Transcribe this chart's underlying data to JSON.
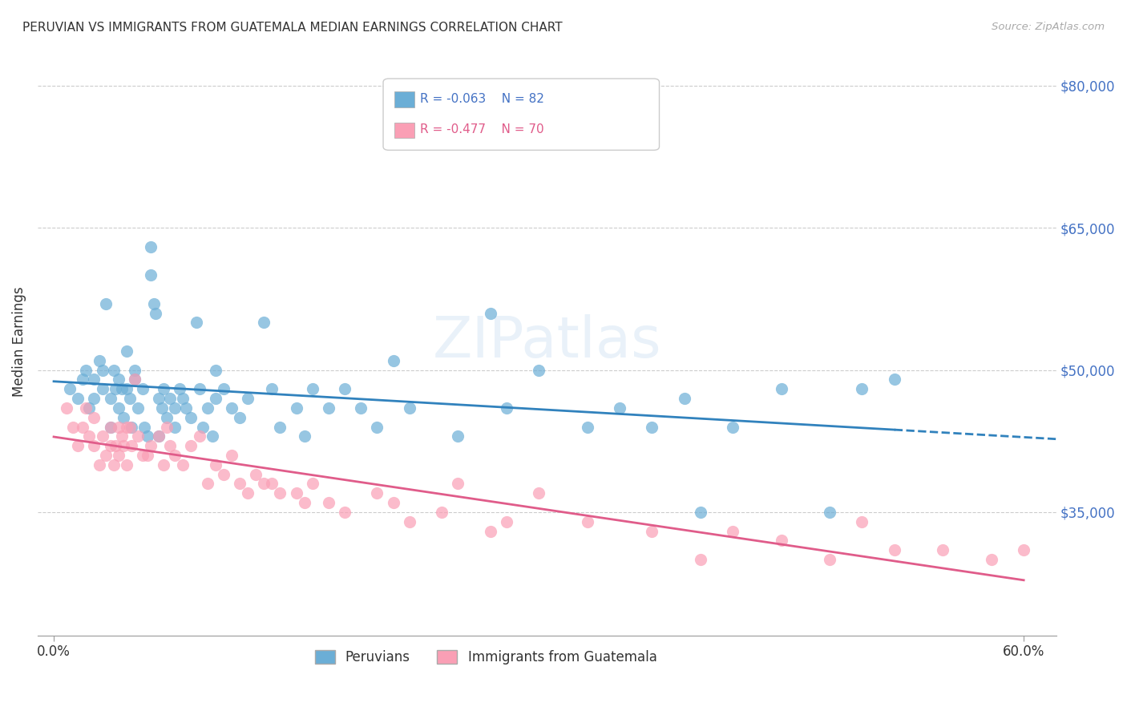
{
  "title": "PERUVIAN VS IMMIGRANTS FROM GUATEMALA MEDIAN EARNINGS CORRELATION CHART",
  "source": "Source: ZipAtlas.com",
  "ylabel": "Median Earnings",
  "yticks": [
    35000,
    50000,
    65000,
    80000
  ],
  "ytick_labels": [
    "$35,000",
    "$50,000",
    "$65,000",
    "$80,000"
  ],
  "xlim": [
    -0.01,
    0.62
  ],
  "ylim": [
    22000,
    84000
  ],
  "legend_label1": "Peruvians",
  "legend_label2": "Immigrants from Guatemala",
  "R1": -0.063,
  "N1": 82,
  "R2": -0.477,
  "N2": 70,
  "color_blue": "#6baed6",
  "color_pink": "#fa9fb5",
  "color_trendline_blue": "#3182bd",
  "color_trendline_pink": "#e05c8a",
  "background_color": "#ffffff",
  "title_fontsize": 11,
  "blue_points_x": [
    0.01,
    0.015,
    0.018,
    0.02,
    0.022,
    0.025,
    0.025,
    0.028,
    0.03,
    0.03,
    0.032,
    0.035,
    0.035,
    0.037,
    0.038,
    0.04,
    0.04,
    0.042,
    0.043,
    0.045,
    0.045,
    0.047,
    0.048,
    0.05,
    0.05,
    0.052,
    0.055,
    0.056,
    0.058,
    0.06,
    0.06,
    0.062,
    0.063,
    0.065,
    0.065,
    0.067,
    0.068,
    0.07,
    0.072,
    0.075,
    0.075,
    0.078,
    0.08,
    0.082,
    0.085,
    0.088,
    0.09,
    0.092,
    0.095,
    0.098,
    0.1,
    0.1,
    0.105,
    0.11,
    0.115,
    0.12,
    0.13,
    0.135,
    0.14,
    0.15,
    0.155,
    0.16,
    0.17,
    0.18,
    0.19,
    0.2,
    0.21,
    0.22,
    0.25,
    0.27,
    0.28,
    0.3,
    0.33,
    0.35,
    0.37,
    0.39,
    0.4,
    0.42,
    0.45,
    0.48,
    0.5,
    0.52
  ],
  "blue_points_y": [
    48000,
    47000,
    49000,
    50000,
    46000,
    47000,
    49000,
    51000,
    48000,
    50000,
    57000,
    44000,
    47000,
    50000,
    48000,
    46000,
    49000,
    48000,
    45000,
    52000,
    48000,
    47000,
    44000,
    49000,
    50000,
    46000,
    48000,
    44000,
    43000,
    60000,
    63000,
    57000,
    56000,
    43000,
    47000,
    46000,
    48000,
    45000,
    47000,
    44000,
    46000,
    48000,
    47000,
    46000,
    45000,
    55000,
    48000,
    44000,
    46000,
    43000,
    47000,
    50000,
    48000,
    46000,
    45000,
    47000,
    55000,
    48000,
    44000,
    46000,
    43000,
    48000,
    46000,
    48000,
    46000,
    44000,
    51000,
    46000,
    43000,
    56000,
    46000,
    50000,
    44000,
    46000,
    44000,
    47000,
    35000,
    44000,
    48000,
    35000,
    48000,
    49000
  ],
  "pink_points_x": [
    0.008,
    0.012,
    0.015,
    0.018,
    0.02,
    0.022,
    0.025,
    0.025,
    0.028,
    0.03,
    0.032,
    0.035,
    0.035,
    0.037,
    0.038,
    0.04,
    0.04,
    0.042,
    0.043,
    0.045,
    0.045,
    0.047,
    0.048,
    0.05,
    0.052,
    0.055,
    0.058,
    0.06,
    0.065,
    0.068,
    0.07,
    0.072,
    0.075,
    0.08,
    0.085,
    0.09,
    0.095,
    0.1,
    0.105,
    0.11,
    0.115,
    0.12,
    0.125,
    0.13,
    0.135,
    0.14,
    0.15,
    0.155,
    0.16,
    0.17,
    0.18,
    0.2,
    0.21,
    0.22,
    0.24,
    0.25,
    0.27,
    0.28,
    0.3,
    0.33,
    0.37,
    0.4,
    0.42,
    0.45,
    0.48,
    0.5,
    0.52,
    0.55,
    0.58,
    0.6
  ],
  "pink_points_y": [
    46000,
    44000,
    42000,
    44000,
    46000,
    43000,
    45000,
    42000,
    40000,
    43000,
    41000,
    44000,
    42000,
    40000,
    42000,
    44000,
    41000,
    43000,
    42000,
    44000,
    40000,
    44000,
    42000,
    49000,
    43000,
    41000,
    41000,
    42000,
    43000,
    40000,
    44000,
    42000,
    41000,
    40000,
    42000,
    43000,
    38000,
    40000,
    39000,
    41000,
    38000,
    37000,
    39000,
    38000,
    38000,
    37000,
    37000,
    36000,
    38000,
    36000,
    35000,
    37000,
    36000,
    34000,
    35000,
    38000,
    33000,
    34000,
    37000,
    34000,
    33000,
    30000,
    33000,
    32000,
    30000,
    34000,
    31000,
    31000,
    30000,
    31000
  ]
}
